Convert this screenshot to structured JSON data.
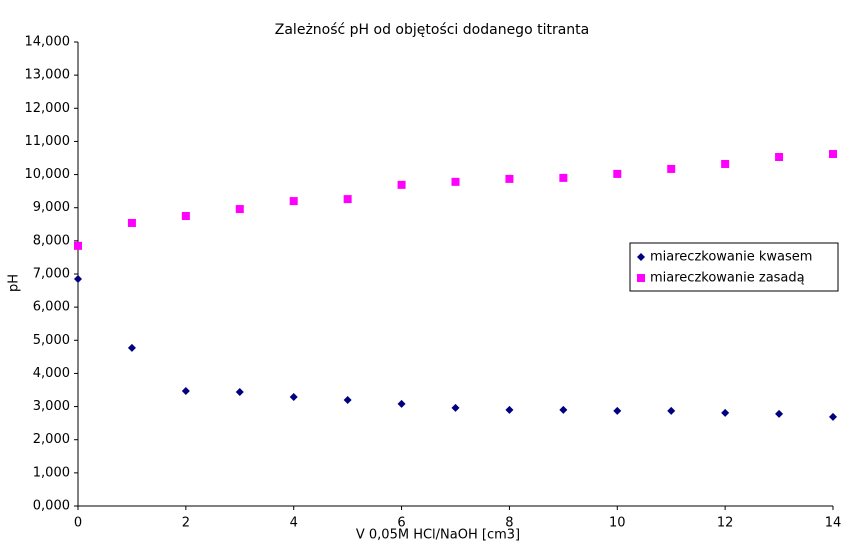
{
  "chart_data": {
    "type": "scatter",
    "title": "Zależność pH od objętości dodanego titranta",
    "x_label": "V 0,05M HCl/NaOH [cm3]",
    "y_label": "pH",
    "x": [
      0,
      1,
      2,
      3,
      4,
      5,
      6,
      7,
      8,
      9,
      10,
      11,
      12,
      13,
      14
    ],
    "series": [
      {
        "name": "miareczkowanie kwasem",
        "color": "#000080",
        "marker": "diamond",
        "values": [
          6.85,
          4.77,
          3.47,
          3.44,
          3.29,
          3.2,
          3.08,
          2.96,
          2.9,
          2.9,
          2.87,
          2.87,
          2.81,
          2.78,
          2.69
        ]
      },
      {
        "name": "miareczkowanie zasadą",
        "color": "#ff00ff",
        "marker": "square",
        "values": [
          7.85,
          8.54,
          8.75,
          8.96,
          9.2,
          9.26,
          9.69,
          9.78,
          9.87,
          9.9,
          10.02,
          10.17,
          10.32,
          10.53,
          10.62
        ]
      }
    ],
    "xlim": [
      0,
      14
    ],
    "xticks": [
      0,
      2,
      4,
      6,
      8,
      10,
      12,
      14
    ],
    "ylim": [
      0,
      14
    ],
    "yticks": [
      {
        "value": 0,
        "label": "0,000"
      },
      {
        "value": 1,
        "label": "1,000"
      },
      {
        "value": 2,
        "label": "2,000"
      },
      {
        "value": 3,
        "label": "3,000"
      },
      {
        "value": 4,
        "label": "4,000"
      },
      {
        "value": 5,
        "label": "5,000"
      },
      {
        "value": 6,
        "label": "6,000"
      },
      {
        "value": 7,
        "label": "7,000"
      },
      {
        "value": 8,
        "label": "8,000"
      },
      {
        "value": 9,
        "label": "9,000"
      },
      {
        "value": 10,
        "label": "10,000"
      },
      {
        "value": 11,
        "label": "11,000"
      },
      {
        "value": 12,
        "label": "12,000"
      },
      {
        "value": 13,
        "label": "13,000"
      },
      {
        "value": 14,
        "label": "14,000"
      }
    ],
    "grid": false,
    "legend": "right"
  }
}
